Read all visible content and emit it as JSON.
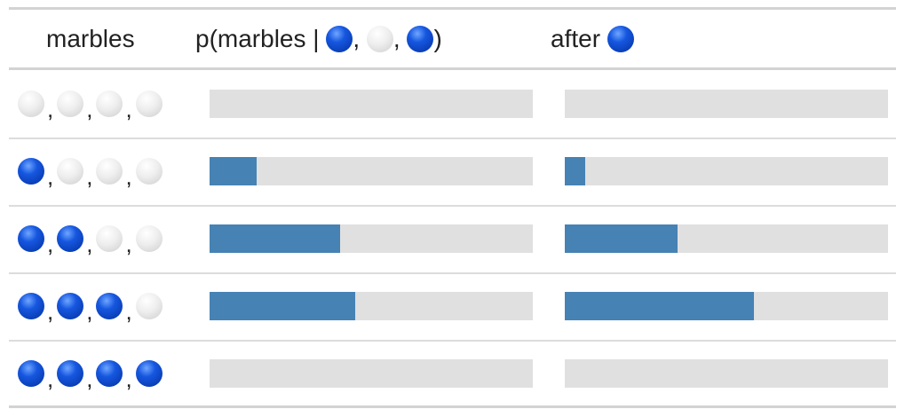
{
  "chart_data": {
    "type": "bar",
    "columns": {
      "marbles": "marbles",
      "prior": {
        "prefix": "p(marbles |",
        "suffix": ")",
        "marbles": [
          "blue",
          "white",
          "blue"
        ]
      },
      "after": {
        "prefix": "after",
        "marbles": [
          "blue"
        ]
      }
    },
    "rows": [
      {
        "marbles": [
          "white",
          "white",
          "white",
          "white"
        ],
        "prior": 0.0,
        "after": 0.0
      },
      {
        "marbles": [
          "blue",
          "white",
          "white",
          "white"
        ],
        "prior": 0.146,
        "after": 0.062
      },
      {
        "marbles": [
          "blue",
          "blue",
          "white",
          "white"
        ],
        "prior": 0.404,
        "after": 0.349
      },
      {
        "marbles": [
          "blue",
          "blue",
          "blue",
          "white"
        ],
        "prior": 0.451,
        "after": 0.585
      },
      {
        "marbles": [
          "blue",
          "blue",
          "blue",
          "blue"
        ],
        "prior": 0.0,
        "after": 0.0
      }
    ],
    "xlim": [
      0,
      1
    ],
    "colors": {
      "bar": "#4682b4",
      "track": "#e0e0e0",
      "blue_marble": "#0a47cc",
      "white_marble": "#e6e6e6"
    }
  }
}
